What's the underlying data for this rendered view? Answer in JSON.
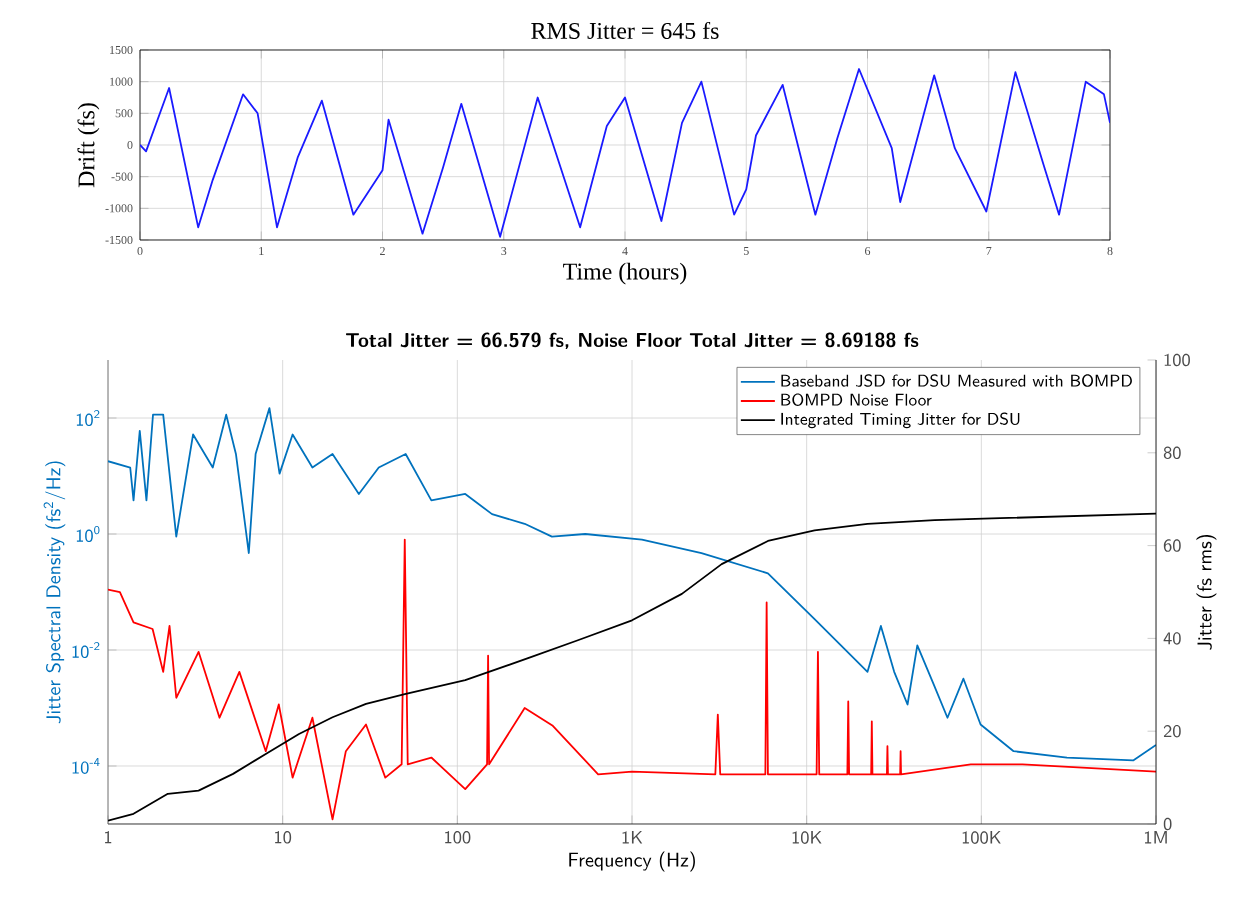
{
  "chart_data": [
    {
      "type": "line",
      "title": "RMS Jitter = 645 fs",
      "xlabel": "Time (hours)",
      "ylabel": "Drift (fs)",
      "xlim": [
        0,
        8
      ],
      "xticks": [
        0,
        1,
        2,
        3,
        4,
        5,
        6,
        7,
        8
      ],
      "ylim": [
        -1500,
        1500
      ],
      "yticks": [
        -1500,
        -1000,
        -500,
        0,
        500,
        1000,
        1500
      ],
      "grid": true,
      "legend": false,
      "marker": "none",
      "line_style": "solid",
      "series": [
        {
          "color": "#1a1aff",
          "x": [
            0,
            0.05,
            0.24,
            0.48,
            0.6,
            0.85,
            0.97,
            1.13,
            1.3,
            1.5,
            1.76,
            2.0,
            2.05,
            2.33,
            2.5,
            2.65,
            2.97,
            3.28,
            3.63,
            3.85,
            4.0,
            4.3,
            4.47,
            4.63,
            4.9,
            5.0,
            5.08,
            5.3,
            5.57,
            5.75,
            5.93,
            6.2,
            6.27,
            6.55,
            6.72,
            6.98,
            7.22,
            7.45,
            7.58,
            7.8,
            7.95,
            8.0
          ],
          "values": [
            0,
            -100,
            900,
            -1300,
            -550,
            800,
            500,
            -1300,
            -200,
            700,
            -1100,
            -400,
            400,
            -1400,
            -350,
            650,
            -1450,
            750,
            -1300,
            300,
            750,
            -1200,
            350,
            1000,
            -1100,
            -700,
            150,
            950,
            -1100,
            100,
            1200,
            -50,
            -900,
            1100,
            -50,
            -1050,
            1150,
            -300,
            -1100,
            1000,
            800,
            350
          ]
        }
      ]
    },
    {
      "type": "line",
      "title": "Total Jitter = 66.579 fs, Noise Floor Total Jitter = 8.69188 fs",
      "xlabel": "Frequency (Hz)",
      "ylabel": "Jitter Spectral Density (fs$^{2}$/Hz)",
      "y2label": "Jitter (fs rms)",
      "log": "xy",
      "xlim": [
        1,
        1000000
      ],
      "xticks": [
        1,
        10,
        100,
        {
          "value": 1000,
          "label": "1K"
        },
        {
          "value": 10000,
          "label": "10K"
        },
        {
          "value": 100000,
          "label": "100K"
        },
        {
          "value": 1000000,
          "label": "1M"
        }
      ],
      "ylim": [
        1e-05,
        1000
      ],
      "yticks": [
        {
          "value": 0.0001,
          "label": "10$^{-4}$"
        },
        {
          "value": 0.01,
          "label": "10$^{-2}$"
        },
        {
          "value": 1,
          "label": "10$^{0}$"
        },
        {
          "value": 100,
          "label": "10$^{2}$"
        }
      ],
      "y2lim": [
        0,
        100
      ],
      "y2ticks": [
        0,
        20,
        40,
        60,
        80,
        100
      ],
      "grid": true,
      "legend": "top right",
      "marker": "none",
      "line_style": "solid",
      "series": [
        {
          "name": "Baseband JSD for DSU Measured with BOMPD",
          "color": "#0072bd",
          "x": [
            1,
            1.34,
            1.4,
            1.52,
            1.66,
            1.81,
            2.07,
            2.46,
            3.07,
            3.98,
            4.75,
            5.4,
            6.4,
            7,
            8.4,
            9.6,
            11.4,
            14.8,
            19.3,
            27.3,
            35.5,
            50.6,
            71,
            111,
            158,
            243,
            348,
            540,
            1140,
            2500,
            6000,
            11100,
            22300,
            26600,
            31700,
            37800,
            43000,
            53500,
            64000,
            79000,
            99000,
            153000,
            309000,
            740000,
            1000000
          ],
          "values": [
            18,
            14,
            3.8,
            60,
            3.8,
            114,
            114,
            0.9,
            52,
            14,
            114,
            24,
            0.47,
            24,
            148,
            11,
            52,
            14,
            24,
            4.9,
            14,
            24,
            3.8,
            4.9,
            2.2,
            1.5,
            0.9,
            1.0,
            0.8,
            0.47,
            0.21,
            0.034,
            0.0042,
            0.026,
            0.0042,
            0.00115,
            0.012,
            0.0025,
            0.00068,
            0.0032,
            0.00052,
            0.00018,
            0.00014,
            0.000125,
            0.00023
          ]
        },
        {
          "name": "BOMPD Noise Floor",
          "color": "#ff0000",
          "x": [
            1,
            1.17,
            1.4,
            1.8,
            2.07,
            2.25,
            2.46,
            3.3,
            4.35,
            5.65,
            8,
            9.5,
            11.4,
            14.8,
            19.3,
            23,
            30,
            38.7,
            48,
            50,
            52,
            71,
            111,
            148,
            150,
            152,
            243,
            350,
            640,
            1000,
            3000,
            3100,
            3200,
            5800,
            5900,
            6000,
            11400,
            11600,
            11800,
            17100,
            17300,
            17500,
            23400,
            23600,
            23800,
            28800,
            29000,
            29200,
            34300,
            34500,
            34700,
            87000,
            172000,
            1000000
          ],
          "values": [
            0.11,
            0.1,
            0.03,
            0.023,
            0.0042,
            0.026,
            0.0015,
            0.0093,
            0.00068,
            0.0042,
            0.00018,
            0.00115,
            6.3e-05,
            0.00068,
            1.2e-05,
            0.00018,
            0.00052,
            6.3e-05,
            0.000107,
            0.8,
            0.000107,
            0.00014,
            4e-05,
            0.000107,
            0.008,
            0.000107,
            0.001,
            0.0005,
            7.2e-05,
            8e-05,
            7.2e-05,
            0.00077,
            7.2e-05,
            7.2e-05,
            0.066,
            7.2e-05,
            7.2e-05,
            0.0093,
            7.2e-05,
            7.2e-05,
            0.0013,
            7.2e-05,
            7.2e-05,
            0.00059,
            7.2e-05,
            7.2e-05,
            0.00022,
            7.2e-05,
            7.2e-05,
            0.00018,
            7.2e-05,
            0.000107,
            0.000107,
            8e-05
          ]
        },
        {
          "name": "Integrated Timing Jitter for DSU",
          "color": "#000000",
          "axis": "y2",
          "x": [
            1,
            1.4,
            2.2,
            3.3,
            5.2,
            8,
            12.4,
            19.3,
            30,
            50,
            111,
            266,
            490,
            1000,
            1930,
            3260,
            6000,
            11100,
            22300,
            54000,
            128000,
            1000000
          ],
          "values": [
            0.7,
            2.2,
            6.5,
            7.2,
            10.8,
            15.1,
            19.4,
            23,
            25.9,
            28,
            31,
            36,
            39.6,
            43.9,
            49.6,
            56,
            61,
            63.3,
            64.7,
            65.5,
            65.9,
            66.9
          ]
        }
      ]
    }
  ]
}
